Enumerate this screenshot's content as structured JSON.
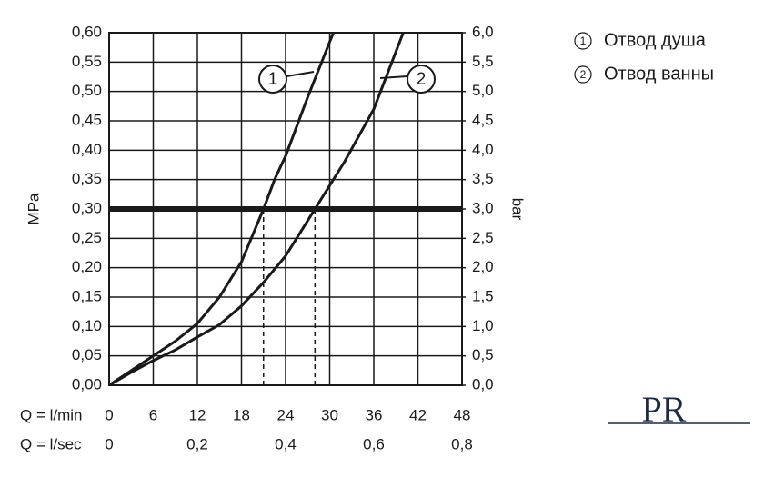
{
  "chart_data": {
    "type": "line",
    "y_label": "MPa",
    "y2_label": "bar",
    "x_label": "Q = l/min",
    "x2_label": "Q = l/sec",
    "xlim": [
      0,
      48
    ],
    "xticks": [
      0,
      6,
      12,
      18,
      24,
      30,
      36,
      42,
      48
    ],
    "x2lim": [
      0,
      0.8
    ],
    "x2ticks": [
      0,
      {
        "value": 0.2,
        "label": "0,2"
      },
      {
        "value": 0.4,
        "label": "0,4"
      },
      {
        "value": 0.6,
        "label": "0,6"
      },
      {
        "value": 0.8,
        "label": "0,8"
      }
    ],
    "ylim": [
      0,
      0.6
    ],
    "yticks": [
      {
        "value": 0,
        "label": "0,00"
      },
      {
        "value": 0.05,
        "label": "0,05"
      },
      {
        "value": 0.1,
        "label": "0,10"
      },
      {
        "value": 0.15,
        "label": "0,15"
      },
      {
        "value": 0.2,
        "label": "0,20"
      },
      {
        "value": 0.25,
        "label": "0,25"
      },
      {
        "value": 0.3,
        "label": "0,30"
      },
      {
        "value": 0.35,
        "label": "0,35"
      },
      {
        "value": 0.4,
        "label": "0,40"
      },
      {
        "value": 0.45,
        "label": "0,45"
      },
      {
        "value": 0.5,
        "label": "0,50"
      },
      {
        "value": 0.55,
        "label": "0,55"
      },
      {
        "value": 0.6,
        "label": "0,60"
      }
    ],
    "y2lim": [
      0,
      6
    ],
    "y2ticks": [
      {
        "value": 0,
        "label": "0,0"
      },
      {
        "value": 0.5,
        "label": "0,5"
      },
      {
        "value": 1,
        "label": "1,0"
      },
      {
        "value": 1.5,
        "label": "1,5"
      },
      {
        "value": 2,
        "label": "2,0"
      },
      {
        "value": 2.5,
        "label": "2,5"
      },
      {
        "value": 3,
        "label": "3,0"
      },
      {
        "value": 3.5,
        "label": "3,5"
      },
      {
        "value": 4,
        "label": "4,0"
      },
      {
        "value": 4.5,
        "label": "4,5"
      },
      {
        "value": 5,
        "label": "5,0"
      },
      {
        "value": 5.5,
        "label": "5,5"
      },
      {
        "value": 6,
        "label": "6,0"
      }
    ],
    "grid": true,
    "threshold": 0.3,
    "intersections": [
      21,
      28
    ],
    "series": [
      {
        "name": "Отвод душа",
        "label": "1",
        "color": "#1a1a1a",
        "x": [
          0,
          3,
          6,
          9,
          12,
          15,
          18,
          21,
          22.5,
          24,
          27,
          30.5
        ],
        "values": [
          0,
          0.025,
          0.05,
          0.075,
          0.105,
          0.15,
          0.21,
          0.3,
          0.35,
          0.39,
          0.49,
          0.6
        ]
      },
      {
        "name": "Отвод ванны",
        "label": "2",
        "color": "#1a1a1a",
        "x": [
          0,
          3,
          6,
          9,
          12,
          15,
          18,
          21,
          24,
          28,
          32,
          36,
          40
        ],
        "values": [
          0,
          0.022,
          0.042,
          0.06,
          0.082,
          0.103,
          0.135,
          0.175,
          0.22,
          0.3,
          0.38,
          0.47,
          0.6
        ]
      }
    ],
    "logo": "PR"
  }
}
